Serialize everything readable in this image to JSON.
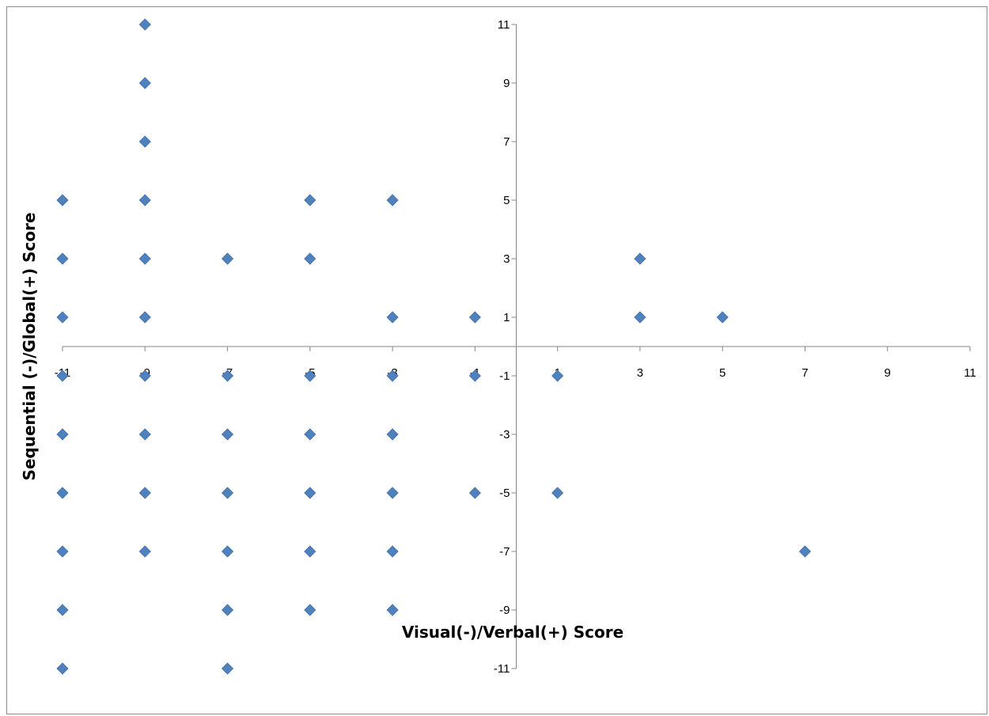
{
  "chart_data": {
    "type": "scatter",
    "title": "",
    "xlabel": "Visual(-)/Verbal(+) Score",
    "ylabel": "Sequential (-)/Global(+) Score",
    "xlim": [
      -11,
      11
    ],
    "ylim": [
      -11,
      11
    ],
    "x_ticks": [
      -11,
      -9,
      -7,
      -5,
      -3,
      -1,
      1,
      3,
      5,
      7,
      9,
      11
    ],
    "y_ticks": [
      -11,
      -9,
      -7,
      -5,
      -3,
      -1,
      1,
      3,
      5,
      7,
      9,
      11
    ],
    "grid": false,
    "legend": "none",
    "marker": "diamond",
    "marker_color": "#4F81BD",
    "series": [
      {
        "points": [
          [
            -9,
            11
          ],
          [
            -9,
            9
          ],
          [
            -9,
            7
          ],
          [
            -11,
            5
          ],
          [
            -9,
            5
          ],
          [
            -5,
            5
          ],
          [
            -3,
            5
          ],
          [
            -11,
            3
          ],
          [
            -9,
            3
          ],
          [
            -7,
            3
          ],
          [
            -5,
            3
          ],
          [
            3,
            3
          ],
          [
            -11,
            1
          ],
          [
            -9,
            1
          ],
          [
            -3,
            1
          ],
          [
            -1,
            1
          ],
          [
            3,
            1
          ],
          [
            5,
            1
          ],
          [
            -11,
            -1
          ],
          [
            -9,
            -1
          ],
          [
            -7,
            -1
          ],
          [
            -5,
            -1
          ],
          [
            -3,
            -1
          ],
          [
            -1,
            -1
          ],
          [
            1,
            -1
          ],
          [
            -11,
            -3
          ],
          [
            -9,
            -3
          ],
          [
            -7,
            -3
          ],
          [
            -5,
            -3
          ],
          [
            -3,
            -3
          ],
          [
            -11,
            -5
          ],
          [
            -9,
            -5
          ],
          [
            -7,
            -5
          ],
          [
            -5,
            -5
          ],
          [
            -3,
            -5
          ],
          [
            -1,
            -5
          ],
          [
            1,
            -5
          ],
          [
            -11,
            -7
          ],
          [
            -9,
            -7
          ],
          [
            -7,
            -7
          ],
          [
            -5,
            -7
          ],
          [
            -3,
            -7
          ],
          [
            7,
            -7
          ],
          [
            -11,
            -9
          ],
          [
            -7,
            -9
          ],
          [
            -5,
            -9
          ],
          [
            -3,
            -9
          ],
          [
            -11,
            -11
          ],
          [
            -7,
            -11
          ]
        ]
      }
    ]
  }
}
